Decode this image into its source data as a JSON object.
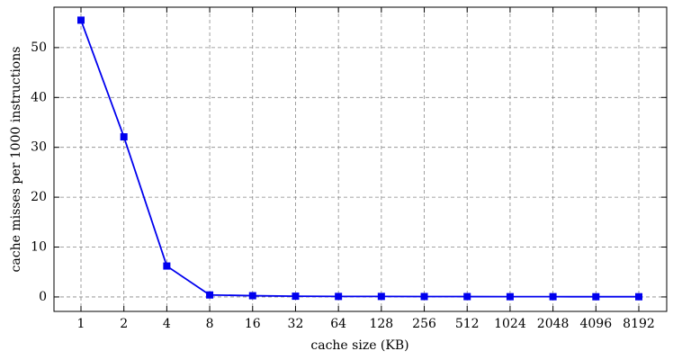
{
  "chart_data": {
    "type": "line",
    "x_label": "cache size (KB)",
    "y_label": "cache misses per 1000 instructions",
    "categories": [
      "1",
      "2",
      "4",
      "8",
      "16",
      "32",
      "64",
      "128",
      "256",
      "512",
      "1024",
      "2048",
      "4096",
      "8192"
    ],
    "series": [
      {
        "name": "cache misses",
        "color": "#0000ee",
        "values": [
          55.5,
          32.1,
          6.2,
          0.4,
          0.25,
          0.15,
          0.1,
          0.1,
          0.08,
          0.07,
          0.05,
          0.05,
          0.04,
          0.04
        ]
      }
    ],
    "ylim": [
      -2.9,
      58.1
    ],
    "yticks": [
      0,
      10,
      20,
      30,
      40,
      50
    ],
    "grid": true
  }
}
